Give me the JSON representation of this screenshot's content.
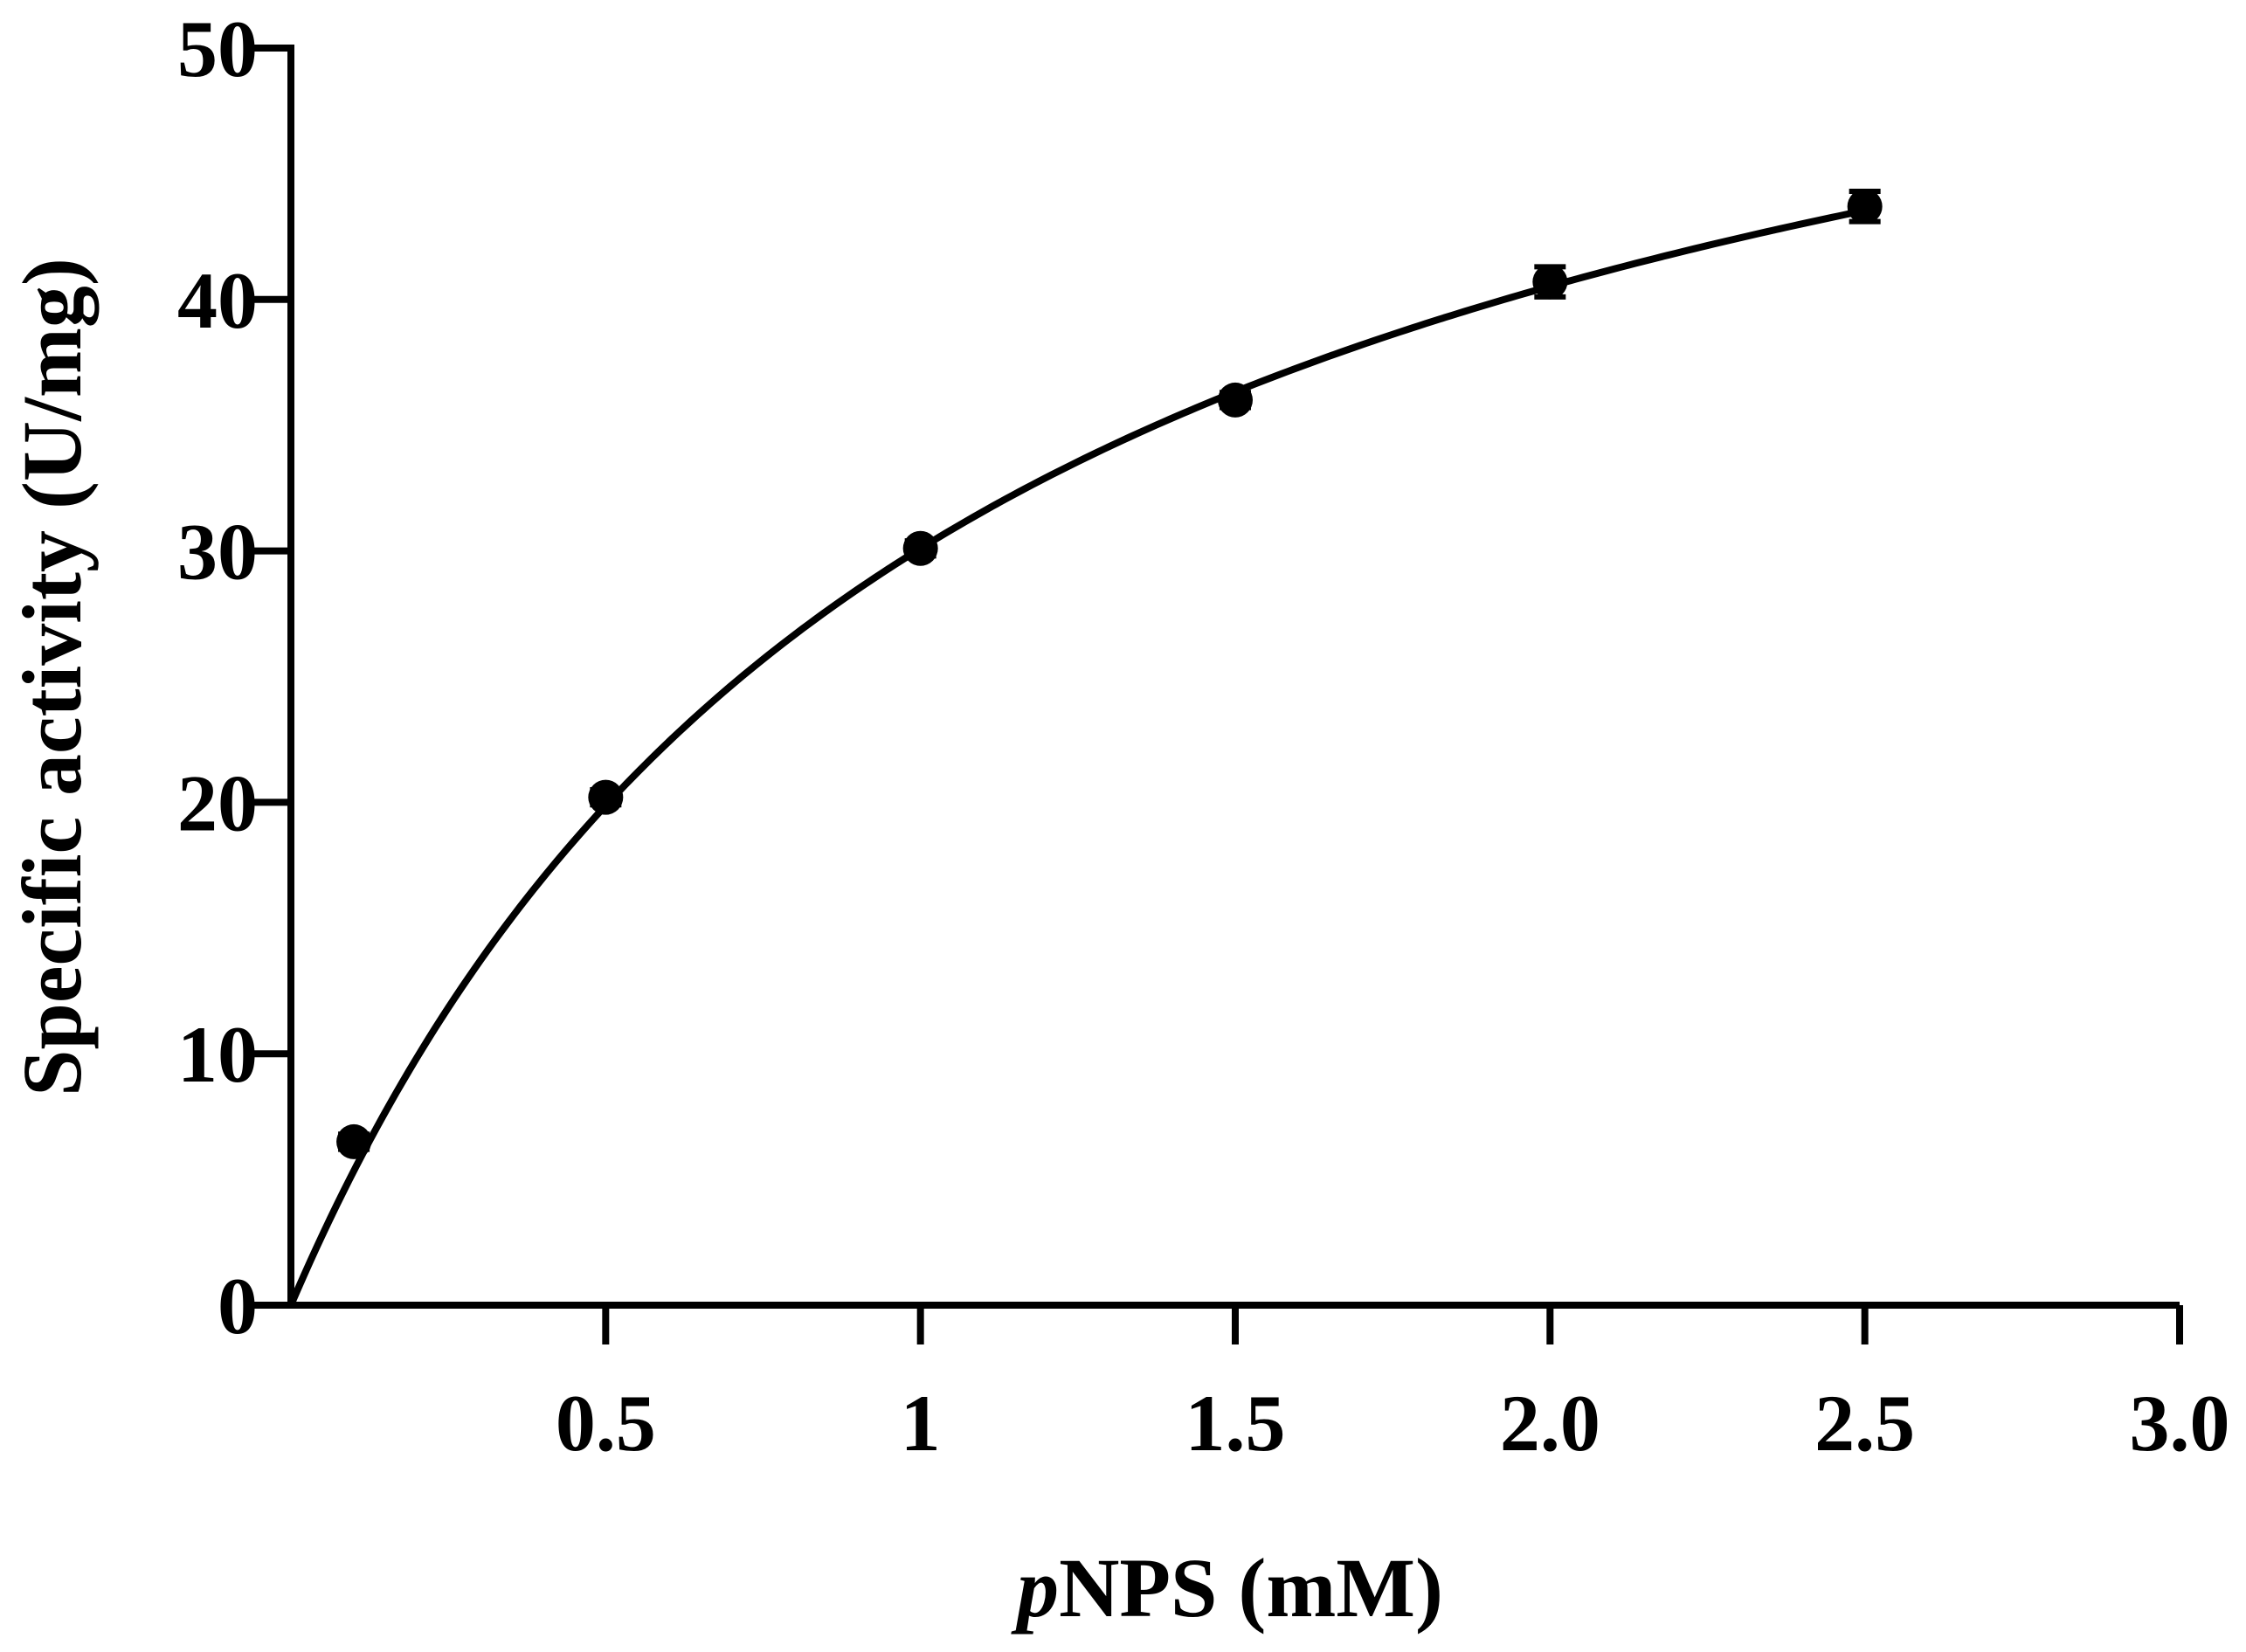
{
  "chart_data": {
    "type": "scatter",
    "title": "",
    "xlabel_italic_prefix": "p",
    "xlabel_rest": "NPS (mM)",
    "ylabel": "Specific activity (U/mg)",
    "xlim": [
      0,
      3.0
    ],
    "ylim": [
      0,
      50
    ],
    "x_ticks": [
      {
        "value": 0.5,
        "label": "0.5"
      },
      {
        "value": 1.0,
        "label": "1"
      },
      {
        "value": 1.5,
        "label": "1.5"
      },
      {
        "value": 2.0,
        "label": "2.0"
      },
      {
        "value": 2.5,
        "label": "2.5"
      },
      {
        "value": 3.0,
        "label": "3.0"
      }
    ],
    "y_ticks": [
      {
        "value": 0,
        "label": "0"
      },
      {
        "value": 10,
        "label": "10"
      },
      {
        "value": 20,
        "label": "20"
      },
      {
        "value": 30,
        "label": "30"
      },
      {
        "value": 40,
        "label": "40"
      },
      {
        "value": 50,
        "label": "50"
      }
    ],
    "series": [
      {
        "points": [
          {
            "x": 0.1,
            "y": 6.5,
            "err": 0.3
          },
          {
            "x": 0.5,
            "y": 20.2,
            "err": 0.3
          },
          {
            "x": 1.0,
            "y": 30.1,
            "err": 0.3
          },
          {
            "x": 1.5,
            "y": 36.0,
            "err": 0.3
          },
          {
            "x": 2.0,
            "y": 40.7,
            "err": 0.6
          },
          {
            "x": 2.5,
            "y": 43.7,
            "err": 0.6
          }
        ],
        "fit": {
          "model": "michaelis-menten",
          "vmax": 62.0,
          "km": 1.06
        }
      }
    ],
    "grid": false,
    "legend": "none",
    "colors": {
      "marker": "#000000",
      "line": "#000000",
      "axis": "#000000"
    }
  }
}
